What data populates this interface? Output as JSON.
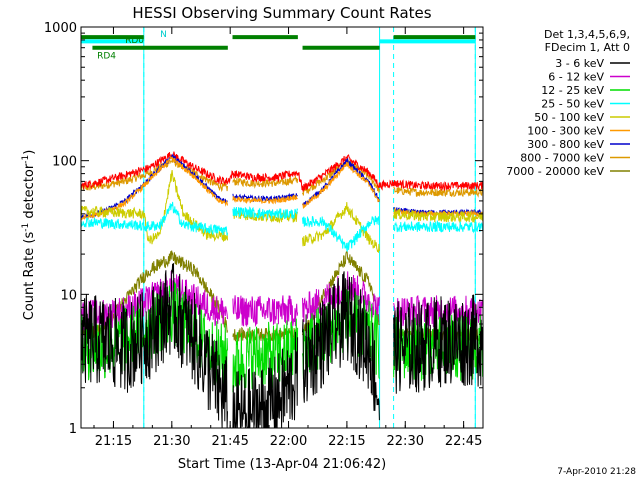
{
  "chart_data": {
    "type": "line",
    "title": "HESSI Observing Summary Count Rates",
    "xlabel": "Start Time (13-Apr-04 21:06:42)",
    "ylabel_prefix": "Count Rate (s",
    "ylabel_sup1": "-1",
    "ylabel_mid": " detector",
    "ylabel_sup2": "-1",
    "ylabel_suffix": ")",
    "yscale": "log",
    "ylim": [
      1,
      1000
    ],
    "xlim_min": [
      21.111,
      22.833
    ],
    "xticks": [
      {
        "v": 21.25,
        "label": "21:15"
      },
      {
        "v": 21.5,
        "label": "21:30"
      },
      {
        "v": 21.75,
        "label": "21:45"
      },
      {
        "v": 22.0,
        "label": "22:00"
      },
      {
        "v": 22.25,
        "label": "22:15"
      },
      {
        "v": 22.5,
        "label": "22:30"
      },
      {
        "v": 22.75,
        "label": "22:45"
      }
    ],
    "yticks": [
      {
        "v": 1,
        "label": "1"
      },
      {
        "v": 10,
        "label": "10"
      },
      {
        "v": 100,
        "label": "100"
      },
      {
        "v": 1000,
        "label": "1000"
      }
    ],
    "legend_header": [
      "Det 1,3,4,5,6,9,",
      "FDecim 1, Att 0"
    ],
    "legend_placement": "right",
    "timestamp": "7-Apr-2010 21:28",
    "flag_labels": {
      "n": "N",
      "rd0": "RD0",
      "rd4": "RD4"
    },
    "gaps": [
      [
        21.74,
        21.76
      ],
      [
        22.04,
        22.06
      ],
      [
        22.39,
        22.45
      ]
    ],
    "night_intervals": [
      [
        21.111,
        21.38
      ],
      [
        22.39,
        22.8
      ]
    ],
    "saa_marks": [
      21.38,
      22.45,
      22.8
    ],
    "decimation_bars": [
      {
        "name": "RD0",
        "level": 840,
        "intervals": [
          [
            21.111,
            21.38
          ],
          [
            21.76,
            22.04
          ],
          [
            22.45,
            22.8
          ]
        ],
        "color": "#008000"
      },
      {
        "name": "RD4",
        "level": 700,
        "intervals": [
          [
            21.16,
            21.74
          ],
          [
            22.06,
            22.39
          ]
        ],
        "color": "#008000"
      }
    ],
    "series": [
      {
        "name": "3 - 6 keV",
        "color": "#000000",
        "x": [
          21.111,
          21.2,
          21.3,
          21.4,
          21.5,
          21.6,
          21.7,
          21.74,
          21.76,
          21.85,
          21.95,
          22.04,
          22.06,
          22.15,
          22.25,
          22.35,
          22.39,
          22.45,
          22.55,
          22.65,
          22.8
        ],
        "y": [
          4.5,
          4.5,
          4.0,
          5.0,
          8.0,
          4.5,
          2.0,
          1.5,
          1.2,
          1.3,
          1.6,
          2.5,
          3.0,
          4.5,
          7.0,
          4.0,
          1.5,
          4.0,
          4.0,
          4.5,
          4.5
        ]
      },
      {
        "name": "6 - 12 keV",
        "color": "#cc00cc",
        "x": [
          21.111,
          21.2,
          21.3,
          21.4,
          21.5,
          21.6,
          21.7,
          21.74,
          21.76,
          21.85,
          21.95,
          22.04,
          22.06,
          22.15,
          22.25,
          22.35,
          22.39,
          22.45,
          22.55,
          22.65,
          22.8
        ],
        "y": [
          7.0,
          7.0,
          7.5,
          9.0,
          11.5,
          9.0,
          7.5,
          7.5,
          7.5,
          7.5,
          7.5,
          7.5,
          7.5,
          9.0,
          12.0,
          9.0,
          7.5,
          7.5,
          7.5,
          7.5,
          7.5
        ]
      },
      {
        "name": "12 - 25 keV",
        "color": "#00dd00",
        "x": [
          21.111,
          21.2,
          21.3,
          21.4,
          21.5,
          21.6,
          21.7,
          21.74,
          21.76,
          21.85,
          21.95,
          22.04,
          22.06,
          22.15,
          22.25,
          22.35,
          22.39,
          22.45,
          22.55,
          22.65,
          22.8
        ],
        "y": [
          4.0,
          4.0,
          4.5,
          5.5,
          7.5,
          5.0,
          3.5,
          3.5,
          3.0,
          3.5,
          3.5,
          4.0,
          4.0,
          5.0,
          6.5,
          5.0,
          4.0,
          4.0,
          4.0,
          4.0,
          4.0
        ]
      },
      {
        "name": "25 - 50 keV",
        "color": "#00ffff",
        "x": [
          21.111,
          21.35,
          21.38,
          21.45,
          21.5,
          21.55,
          21.65,
          21.74,
          21.76,
          21.9,
          22.04,
          22.06,
          22.15,
          22.25,
          22.35,
          22.39,
          22.45,
          22.6,
          22.8
        ],
        "y": [
          35,
          33,
          32,
          33,
          46,
          33,
          31,
          30,
          42,
          40,
          40,
          35,
          35,
          22,
          35,
          36,
          32,
          32,
          32
        ]
      },
      {
        "name": "50 - 100 keV",
        "color": "#cccc00",
        "x": [
          21.111,
          21.38,
          21.4,
          21.45,
          21.5,
          21.55,
          21.65,
          21.74,
          21.76,
          21.9,
          22.04,
          22.06,
          22.15,
          22.25,
          22.35,
          22.39,
          22.45,
          22.6,
          22.8
        ],
        "y": [
          42,
          40,
          25,
          28,
          80,
          40,
          28,
          27,
          40,
          38,
          38,
          25,
          28,
          45,
          25,
          22,
          40,
          38,
          38
        ]
      },
      {
        "name": "100 - 300 keV",
        "color": "#ff9900",
        "x": [
          21.111,
          21.2,
          21.3,
          21.4,
          21.5,
          21.6,
          21.7,
          21.74,
          21.76,
          21.85,
          21.95,
          22.04,
          22.06,
          22.15,
          22.25,
          22.35,
          22.39,
          22.45,
          22.55,
          22.65,
          22.8
        ],
        "y": [
          37,
          40,
          48,
          70,
          105,
          75,
          50,
          48,
          52,
          50,
          50,
          54,
          45,
          60,
          95,
          65,
          48,
          42,
          40,
          40,
          40
        ]
      },
      {
        "name": "300 - 800 keV",
        "color": "#0000cc",
        "x": [
          21.111,
          21.2,
          21.3,
          21.4,
          21.5,
          21.6,
          21.7,
          21.74,
          21.76,
          21.85,
          21.95,
          22.04,
          22.06,
          22.15,
          22.25,
          22.35,
          22.39,
          22.45,
          22.55,
          22.65,
          22.8
        ],
        "y": [
          38,
          41,
          50,
          72,
          108,
          78,
          52,
          50,
          54,
          52,
          52,
          55,
          46,
          62,
          100,
          67,
          50,
          43,
          41,
          41,
          41
        ]
      },
      {
        "name": "800 - 7000 keV",
        "color": "#dd9900",
        "x": [
          21.111,
          21.2,
          21.3,
          21.4,
          21.5,
          21.6,
          21.7,
          21.74,
          21.76,
          21.85,
          21.95,
          22.04,
          22.06,
          22.15,
          22.25,
          22.35,
          22.39,
          22.45,
          22.55,
          22.65,
          22.8
        ],
        "y": [
          62,
          65,
          70,
          80,
          100,
          80,
          65,
          62,
          70,
          68,
          68,
          72,
          58,
          72,
          98,
          75,
          60,
          60,
          58,
          58,
          58
        ]
      },
      {
        "name": "7000 - 20000 keV",
        "color": "#808000",
        "x": [
          21.111,
          21.2,
          21.3,
          21.4,
          21.5,
          21.6,
          21.7,
          21.74,
          21.76,
          21.85,
          21.95,
          22.04,
          22.06,
          22.15,
          22.25,
          22.35,
          22.39,
          22.45,
          22.55,
          22.65,
          22.8
        ],
        "y": [
          5.0,
          5.5,
          9.0,
          15,
          19,
          15,
          8.0,
          5.5,
          5.0,
          5.0,
          5.0,
          5.0,
          5.0,
          10,
          19,
          12,
          6.0,
          5.0,
          5.0,
          5.0,
          5.0
        ]
      },
      {
        "name": "",
        "color": "#ff0000",
        "x": [
          21.111,
          21.2,
          21.3,
          21.4,
          21.5,
          21.6,
          21.7,
          21.74,
          21.76,
          21.85,
          21.95,
          22.04,
          22.06,
          22.15,
          22.25,
          22.35,
          22.39,
          22.45,
          22.55,
          22.65,
          22.8
        ],
        "y": [
          65,
          70,
          78,
          88,
          112,
          88,
          72,
          70,
          80,
          75,
          75,
          82,
          62,
          78,
          105,
          80,
          65,
          68,
          65,
          65,
          65
        ]
      }
    ]
  }
}
